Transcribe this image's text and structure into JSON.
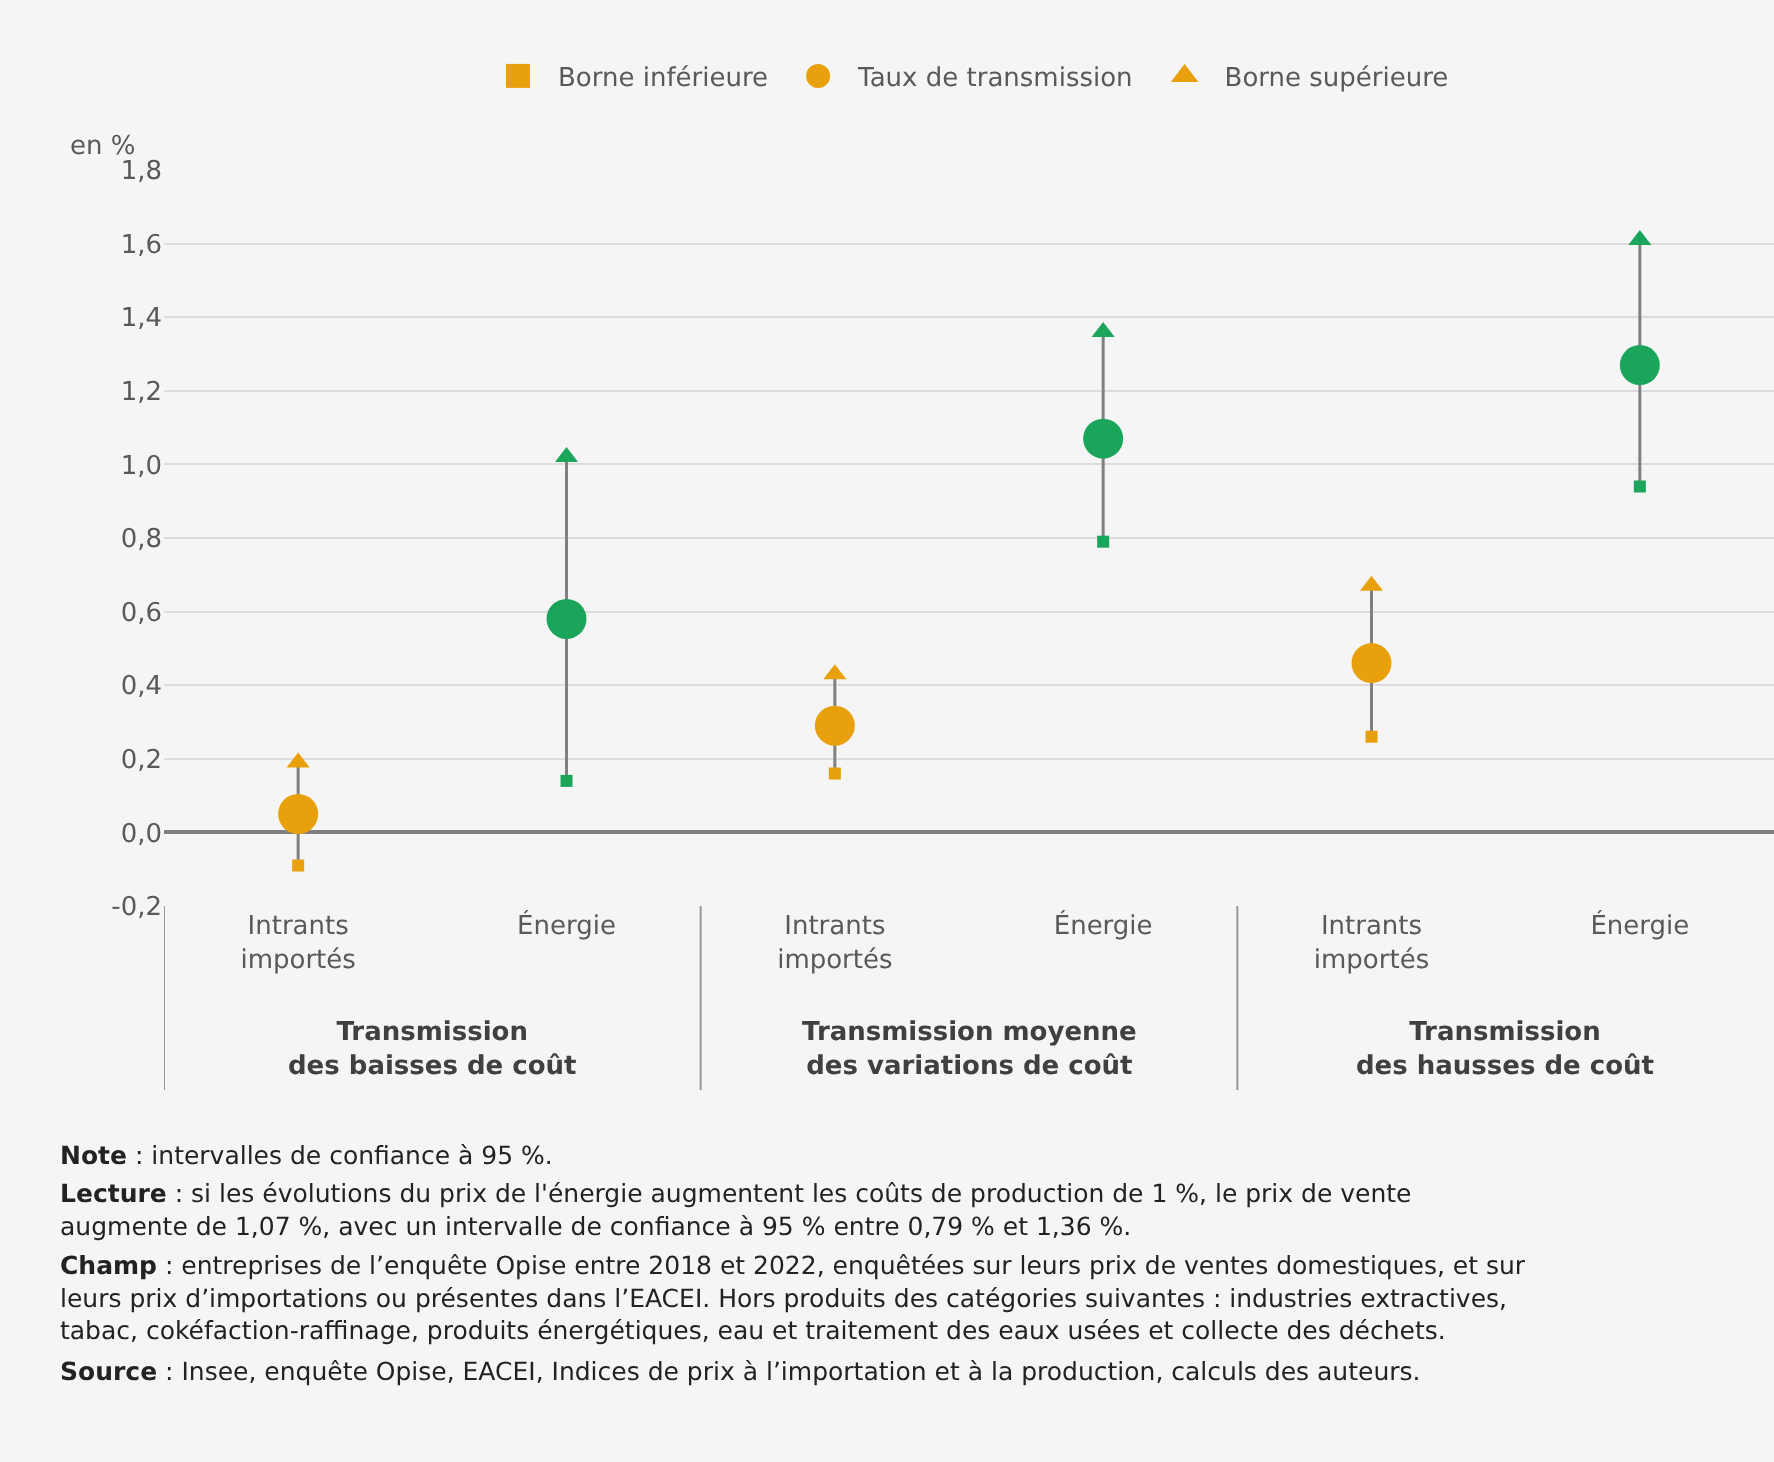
{
  "chart_data": {
    "type": "scatter",
    "categories": [
      "Intrants importés",
      "Énergie",
      "Intrants importés",
      "Énergie",
      "Intrants importés",
      "Énergie"
    ],
    "ylabel": "en %",
    "series": [
      {
        "name": "Borne inférieure",
        "marker": "square",
        "color": "#e8a10c",
        "colors": [
          "#e8a10c",
          "#1aa55a",
          "#e8a10c",
          "#1aa55a",
          "#e8a10c",
          "#1aa55a"
        ],
        "values": [
          -0.09,
          0.14,
          0.16,
          0.79,
          0.26,
          0.94
        ]
      },
      {
        "name": "Taux de transmission",
        "marker": "circle",
        "color": "#e8a10c",
        "colors": [
          "#e8a10c",
          "#1aa55a",
          "#e8a10c",
          "#1aa55a",
          "#e8a10c",
          "#1aa55a"
        ],
        "values": [
          0.05,
          0.58,
          0.29,
          1.07,
          0.46,
          1.27
        ]
      },
      {
        "name": "Borne supérieure",
        "marker": "triangle",
        "color": "#e8a10c",
        "colors": [
          "#e8a10c",
          "#1aa55a",
          "#e8a10c",
          "#1aa55a",
          "#e8a10c",
          "#1aa55a"
        ],
        "values": [
          0.19,
          1.02,
          0.43,
          1.36,
          0.67,
          1.61
        ]
      }
    ],
    "ylim": [
      -0.2,
      1.8
    ],
    "yticks": [
      {
        "value": -0.2,
        "label": "-0,2"
      },
      {
        "value": 0,
        "label": "0,0"
      },
      {
        "value": 0.2,
        "label": "0,2"
      },
      {
        "value": 0.4,
        "label": "0,4"
      },
      {
        "value": 0.6,
        "label": "0,6"
      },
      {
        "value": 0.8,
        "label": "0,8"
      },
      {
        "value": 1.0,
        "label": "1,0"
      },
      {
        "value": 1.2,
        "label": "1,2"
      },
      {
        "value": 1.4,
        "label": "1,4"
      },
      {
        "value": 1.6,
        "label": "1,6"
      },
      {
        "value": 1.8,
        "label": "1,8"
      }
    ],
    "grid": "y",
    "legend": "top",
    "annotations": [
      "Transmission\ndes baisses de coût",
      "Transmission moyenne\ndes variations de coût",
      "Transmission\ndes hausses de coût",
      "Note : intervalles de confiance à 95 %.",
      "Lecture : si les évolutions du prix de l'énergie augmentent les coûts de production de 1 %, le prix de vente\naugmente de 1,07 %, avec un intervalle de confiance à 95 % entre 0,79 % et 1,36 %.",
      "Champ : entreprises de l’enquête Opise entre 2018 et 2022, enquêtées sur leurs prix de ventes domestiques, et sur\nleurs prix d’importations ou présentes dans l’EACEI. Hors produits des catégories suivantes : industries extractives,\ntabac, cokéfaction-raffinage, produits énergétiques, eau et traitement des eaux usées et collecte des déchets.",
      "Source : Insee, enquête Opise, EACEI, Indices de prix à l’importation et à la production, calculs des auteurs."
    ]
  }
}
